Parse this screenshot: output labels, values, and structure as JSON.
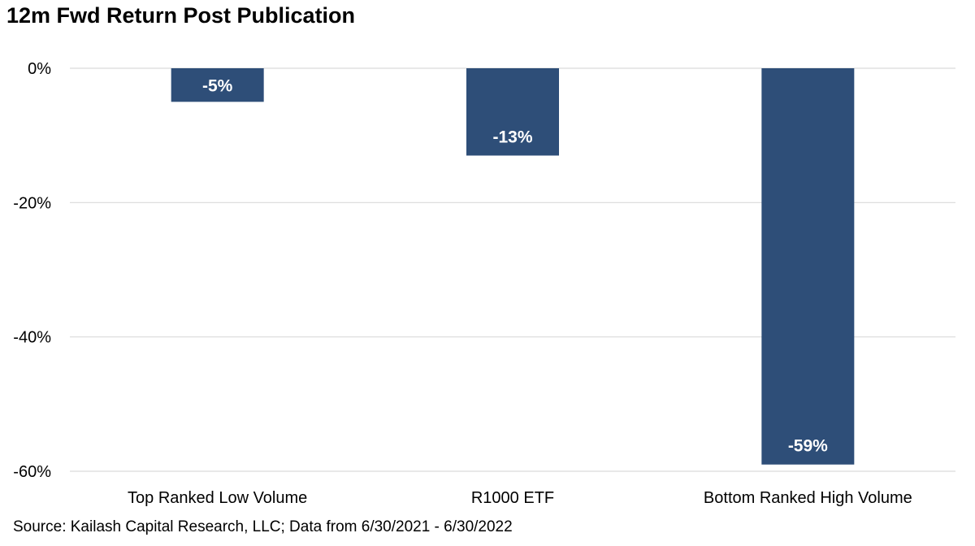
{
  "chart_data": {
    "type": "bar",
    "title": "12m Fwd Return Post Publication",
    "categories": [
      "Top Ranked Low Volume",
      "R1000 ETF",
      "Bottom Ranked High Volume"
    ],
    "values": [
      -5,
      -13,
      -59
    ],
    "data_labels": [
      "-5%",
      "-13%",
      "-59%"
    ],
    "ylim": [
      -60,
      0
    ],
    "yticks": [
      0,
      -20,
      -40,
      -60
    ],
    "ytick_labels": [
      "0%",
      "-20%",
      "-40%",
      "-60%"
    ],
    "xlabel": "",
    "ylabel": "",
    "grid": true,
    "bar_color": "#2e4e78",
    "source": "Source: Kailash Capital Research, LLC; Data from 6/30/2021 - 6/30/2022"
  }
}
